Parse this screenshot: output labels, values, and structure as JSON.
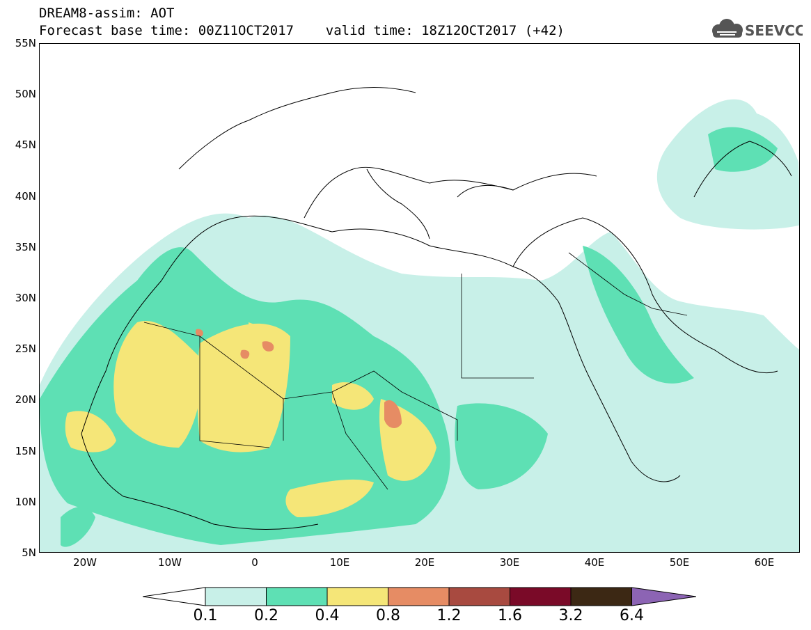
{
  "header": {
    "title_line1": "DREAM8-assim: AOT",
    "title_line2": "Forecast base time: 00Z11OCT2017    valid time: 18Z12OCT2017 (+42)",
    "logo_text": "SEEVCCC"
  },
  "map": {
    "variable": "AOT",
    "lat_labels": [
      "55N",
      "50N",
      "45N",
      "40N",
      "35N",
      "30N",
      "25N",
      "20N",
      "15N",
      "10N",
      "5N"
    ],
    "lon_labels": [
      "20W",
      "10W",
      "0",
      "10E",
      "20E",
      "30E",
      "40E",
      "50E",
      "60E"
    ]
  },
  "legend": {
    "labels": [
      "0.1",
      "0.2",
      "0.4",
      "0.8",
      "1.2",
      "1.6",
      "3.2",
      "6.4"
    ],
    "colors": [
      "#c8f0e8",
      "#5ee0b4",
      "#f5e678",
      "#e68c64",
      "#a84a40",
      "#7a0a28",
      "#3c2814",
      "#8c64b4"
    ],
    "lower_arrow_color": "#ffffff"
  }
}
